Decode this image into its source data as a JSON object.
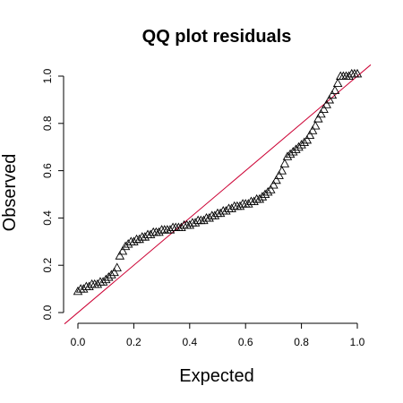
{
  "chart_data": {
    "type": "scatter",
    "title": "QQ plot residuals",
    "xlabel": "Expected",
    "ylabel": "Observed",
    "xlim": [
      0,
      1
    ],
    "ylim": [
      0,
      1
    ],
    "x_ticks": [
      "0.0",
      "0.2",
      "0.4",
      "0.6",
      "0.8",
      "1.0"
    ],
    "y_ticks": [
      "0.0",
      "0.2",
      "0.4",
      "0.6",
      "0.8",
      "1.0"
    ],
    "grid": false,
    "marker": "triangle-outline",
    "reference_line": {
      "slope": 1,
      "intercept": 0,
      "color": "#cc0033"
    },
    "series": [
      {
        "x": [
          0.0,
          0.01,
          0.02,
          0.03,
          0.04,
          0.05,
          0.06,
          0.07,
          0.08,
          0.09,
          0.1,
          0.11,
          0.12,
          0.13,
          0.14,
          0.15,
          0.16,
          0.17,
          0.18,
          0.19,
          0.2,
          0.21,
          0.22,
          0.23,
          0.24,
          0.25,
          0.26,
          0.27,
          0.28,
          0.29,
          0.3,
          0.31,
          0.32,
          0.33,
          0.34,
          0.35,
          0.36,
          0.37,
          0.38,
          0.39,
          0.4,
          0.41,
          0.42,
          0.43,
          0.44,
          0.45,
          0.46,
          0.47,
          0.48,
          0.49,
          0.5,
          0.51,
          0.52,
          0.53,
          0.54,
          0.55,
          0.56,
          0.57,
          0.58,
          0.59,
          0.6,
          0.61,
          0.62,
          0.63,
          0.64,
          0.65,
          0.66,
          0.67,
          0.68,
          0.69,
          0.7,
          0.71,
          0.72,
          0.73,
          0.74,
          0.75,
          0.76,
          0.77,
          0.78,
          0.79,
          0.8,
          0.81,
          0.82,
          0.83,
          0.84,
          0.85,
          0.86,
          0.87,
          0.88,
          0.89,
          0.9,
          0.91,
          0.92,
          0.93,
          0.94,
          0.95,
          0.96,
          0.97,
          0.98,
          0.99,
          1.0
        ],
        "y": [
          0.09,
          0.1,
          0.1,
          0.11,
          0.11,
          0.12,
          0.12,
          0.12,
          0.13,
          0.13,
          0.14,
          0.15,
          0.16,
          0.17,
          0.19,
          0.24,
          0.26,
          0.28,
          0.29,
          0.3,
          0.3,
          0.31,
          0.31,
          0.32,
          0.32,
          0.33,
          0.33,
          0.34,
          0.34,
          0.34,
          0.35,
          0.35,
          0.35,
          0.35,
          0.36,
          0.36,
          0.36,
          0.36,
          0.37,
          0.37,
          0.37,
          0.38,
          0.38,
          0.39,
          0.39,
          0.39,
          0.4,
          0.4,
          0.41,
          0.41,
          0.42,
          0.42,
          0.43,
          0.43,
          0.44,
          0.44,
          0.45,
          0.45,
          0.45,
          0.46,
          0.46,
          0.46,
          0.47,
          0.47,
          0.48,
          0.48,
          0.49,
          0.5,
          0.51,
          0.52,
          0.54,
          0.56,
          0.58,
          0.6,
          0.63,
          0.66,
          0.67,
          0.68,
          0.69,
          0.7,
          0.71,
          0.72,
          0.73,
          0.75,
          0.77,
          0.79,
          0.82,
          0.84,
          0.86,
          0.88,
          0.9,
          0.92,
          0.94,
          0.97,
          1.0,
          1.0,
          1.0,
          1.0,
          1.01,
          1.01,
          1.01
        ]
      }
    ]
  }
}
